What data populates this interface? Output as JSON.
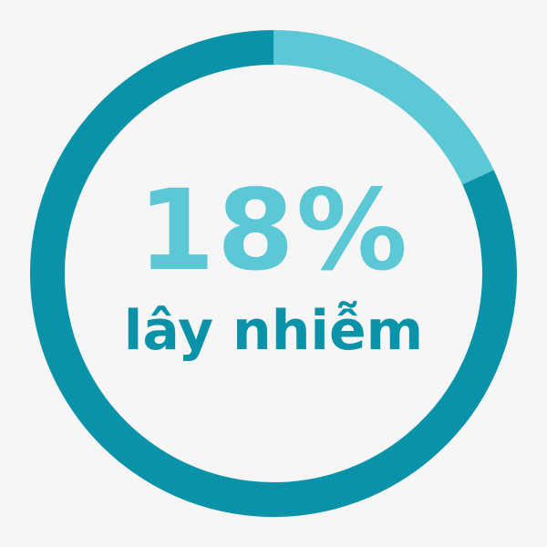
{
  "chart_data": {
    "type": "pie",
    "style": "donut",
    "value_label": "18%",
    "caption": "lây nhiễm",
    "slices": [
      {
        "value": 18,
        "color": "#5cc8d5"
      },
      {
        "value": 82,
        "color": "#0a93a8"
      }
    ],
    "start_angle_deg": 0,
    "direction": "clockwise",
    "background": "#f6f6f6"
  }
}
